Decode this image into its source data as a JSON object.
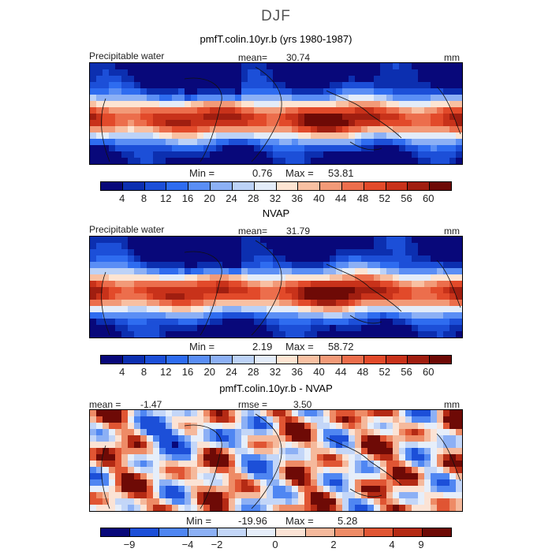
{
  "title": "DJF",
  "chart_data": [
    {
      "type": "heatmap",
      "subtitle": "pmfT.colin.10yr.b (yrs 1980-1987)",
      "variable_label": "Precipitable water",
      "stat_label": "mean=",
      "stat_value": "30.74",
      "units": "mm",
      "min_label": "Min =",
      "min_value": "0.76",
      "max_label": "Max =",
      "max_value": "53.81",
      "colorbar_levels": [
        "4",
        "8",
        "12",
        "16",
        "20",
        "24",
        "28",
        "32",
        "36",
        "40",
        "44",
        "48",
        "52",
        "56",
        "60"
      ]
    },
    {
      "type": "heatmap",
      "subtitle": "NVAP",
      "variable_label": "Precipitable water",
      "stat_label": "mean=",
      "stat_value": "31.79",
      "units": "mm",
      "min_label": "Min =",
      "min_value": "2.19",
      "max_label": "Max =",
      "max_value": "58.72",
      "colorbar_levels": [
        "4",
        "8",
        "12",
        "16",
        "20",
        "24",
        "28",
        "32",
        "36",
        "40",
        "44",
        "48",
        "52",
        "56",
        "60"
      ]
    },
    {
      "type": "heatmap",
      "subtitle": "pmfT.colin.10yr.b - NVAP",
      "stat_label": "mean =",
      "stat_value": "-1.47",
      "rmse_label": "rmse =",
      "rmse_value": "3.50",
      "units": "mm",
      "min_label": "Min =",
      "min_value": "-19.96",
      "max_label": "Max =",
      "max_value": "5.28",
      "colorbar_levels": [
        "−9",
        "−4",
        "−2",
        "0",
        "2",
        "4",
        "9"
      ]
    }
  ],
  "colors": {
    "seq": [
      "#08087a",
      "#0c2fb0",
      "#1c4fd8",
      "#2e6cf0",
      "#5a8ef5",
      "#8cb0f5",
      "#bcd2f7",
      "#e3ecf9",
      "#fde4d2",
      "#f8c0a2",
      "#f29a78",
      "#ec6e4c",
      "#e24a2a",
      "#c8321a",
      "#a01e10",
      "#6e0a06"
    ],
    "diff": [
      "#08087a",
      "#1c4fd8",
      "#4f86f2",
      "#8cb0f5",
      "#c3d6f8",
      "#e6eefa",
      "#fbe3d5",
      "#f5b99c",
      "#ee8b66",
      "#e05533",
      "#b42a14",
      "#6e0a06"
    ]
  }
}
